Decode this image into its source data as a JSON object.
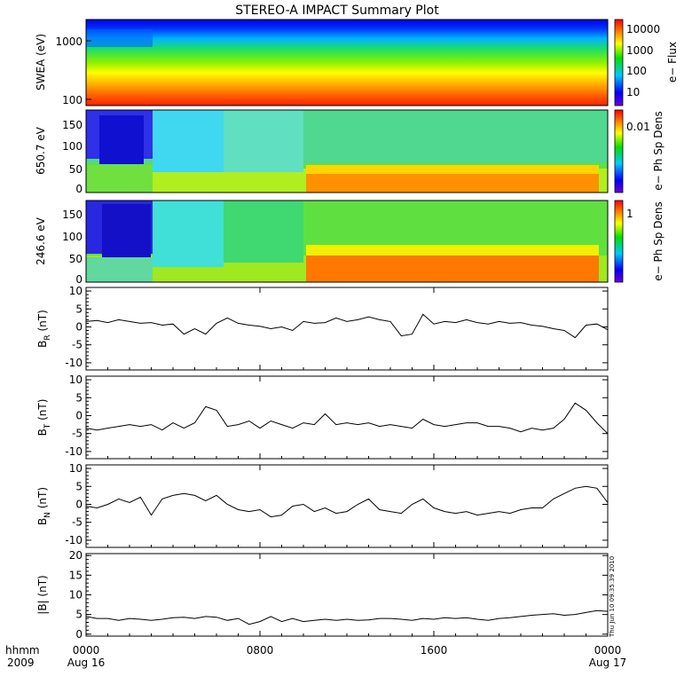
{
  "title": "STEREO-A IMPACT Summary Plot",
  "x_axis": {
    "ticks": [
      "0000",
      "0800",
      "1600",
      "0000"
    ],
    "dates": [
      "Aug 16",
      "",
      "",
      "Aug 17"
    ],
    "left_label_top": "hhmm",
    "left_label_bottom": "2009"
  },
  "timestamp": "Thu Jun 10 09:35:39 2010",
  "colors": {
    "line": "#000000",
    "background": "#ffffff",
    "spectrogram_scale": "rainbow (blue low → red high)"
  },
  "chart_data": [
    {
      "type": "heatmap",
      "ylabel": "SWEA (eV)",
      "yscale": "log",
      "ylim": [
        100,
        1800
      ],
      "yticks": [
        "1000",
        "100"
      ],
      "colorbar_label": "e− Flux",
      "colorbar_scale": "log",
      "colorbar_ticks": [
        "10000",
        "1000",
        "100",
        "10"
      ],
      "description_of_values": "flux highest (red) at ~100 eV, decreasing with energy; blue above ~1500 eV"
    },
    {
      "type": "heatmap",
      "ylabel": "650.7 eV",
      "ylim": [
        -10,
        175
      ],
      "yticks": [
        "150",
        "100",
        "50",
        "0"
      ],
      "colorbar_label": "e− Ph Sp Dens",
      "colorbar_ticks": [
        "0.01"
      ]
    },
    {
      "type": "heatmap",
      "ylabel": "246.6 eV",
      "ylim": [
        -10,
        175
      ],
      "yticks": [
        "150",
        "100",
        "50",
        "0"
      ],
      "colorbar_label": "e− Ph Sp Dens",
      "colorbar_ticks": [
        "1"
      ]
    },
    {
      "type": "line",
      "ylabel": "B_R (nT)",
      "ylabel_main": "B",
      "ylabel_sub": "R",
      "ylabel_unit": "(nT)",
      "ylim": [
        -12,
        11
      ],
      "yticks": [
        "10",
        "5",
        "0",
        "-5",
        "-10"
      ],
      "x_hours": [
        0,
        0.5,
        1,
        1.5,
        2,
        2.5,
        3,
        3.5,
        4,
        4.5,
        5,
        5.5,
        6,
        6.5,
        7,
        7.5,
        8,
        8.5,
        9,
        9.5,
        10,
        10.5,
        11,
        11.5,
        12,
        12.5,
        13,
        13.5,
        14,
        14.5,
        15,
        15.5,
        16,
        16.5,
        17,
        17.5,
        18,
        18.5,
        19,
        19.5,
        20,
        20.5,
        21,
        21.5,
        22,
        22.5,
        23,
        23.5,
        24
      ],
      "values": [
        1.5,
        1.8,
        1.2,
        2.0,
        1.5,
        1.0,
        1.2,
        0.5,
        0.8,
        -2,
        -0.5,
        -2,
        1.0,
        2.5,
        1.0,
        0.5,
        0.2,
        -0.5,
        0,
        -1,
        1.5,
        1.0,
        1.2,
        2.5,
        1.5,
        2.0,
        2.8,
        2.0,
        1.5,
        -2.5,
        -2,
        3.5,
        0.8,
        1.5,
        1.2,
        2,
        1.2,
        0.8,
        1.5,
        1.0,
        1.2,
        0.5,
        0.2,
        -0.5,
        -1,
        -3,
        0.5,
        0.8,
        -0.8
      ]
    },
    {
      "type": "line",
      "ylabel": "B_T (nT)",
      "ylabel_main": "B",
      "ylabel_sub": "T",
      "ylabel_unit": "(nT)",
      "ylim": [
        -12,
        11
      ],
      "yticks": [
        "10",
        "5",
        "0",
        "-5",
        "-10"
      ],
      "x_hours": [
        0,
        0.5,
        1,
        1.5,
        2,
        2.5,
        3,
        3.5,
        4,
        4.5,
        5,
        5.5,
        6,
        6.5,
        7,
        7.5,
        8,
        8.5,
        9,
        9.5,
        10,
        10.5,
        11,
        11.5,
        12,
        12.5,
        13,
        13.5,
        14,
        14.5,
        15,
        15.5,
        16,
        16.5,
        17,
        17.5,
        18,
        18.5,
        19,
        19.5,
        20,
        20.5,
        21,
        21.5,
        22,
        22.5,
        23,
        23.5,
        24
      ],
      "values": [
        -3.5,
        -4,
        -3.5,
        -3,
        -2.5,
        -3,
        -2.5,
        -4,
        -2,
        -3.5,
        -2,
        2.5,
        1.5,
        -3,
        -2.5,
        -1.5,
        -3.5,
        -1.5,
        -2.5,
        -3.5,
        -2,
        -2.5,
        0.5,
        -2.5,
        -2,
        -2.5,
        -2,
        -3,
        -2.5,
        -3,
        -3.5,
        -1,
        -2.5,
        -3,
        -2.5,
        -2,
        -2,
        -3,
        -3,
        -3.5,
        -4.5,
        -3.5,
        -4,
        -3.5,
        -1,
        3.5,
        1.5,
        -2,
        -5
      ]
    },
    {
      "type": "line",
      "ylabel": "B_N (nT)",
      "ylabel_main": "B",
      "ylabel_sub": "N",
      "ylabel_unit": "(nT)",
      "ylim": [
        -12,
        11
      ],
      "yticks": [
        "10",
        "5",
        "0",
        "-5",
        "-10"
      ],
      "x_hours": [
        0,
        0.5,
        1,
        1.5,
        2,
        2.5,
        3,
        3.5,
        4,
        4.5,
        5,
        5.5,
        6,
        6.5,
        7,
        7.5,
        8,
        8.5,
        9,
        9.5,
        10,
        10.5,
        11,
        11.5,
        12,
        12.5,
        13,
        13.5,
        14,
        14.5,
        15,
        15.5,
        16,
        16.5,
        17,
        17.5,
        18,
        18.5,
        19,
        19.5,
        20,
        20.5,
        21,
        21.5,
        22,
        22.5,
        23,
        23.5,
        24
      ],
      "values": [
        -0.5,
        -1,
        0,
        1.5,
        0.5,
        2,
        -3,
        1.5,
        2.5,
        3,
        2.5,
        1,
        2.5,
        0,
        -1.5,
        -2,
        -1.5,
        -3.5,
        -3,
        -0.5,
        0,
        -2,
        -1,
        -2.5,
        -2,
        0,
        1.5,
        -1.5,
        -2,
        -2.5,
        0,
        1.5,
        -1,
        -2,
        -2.5,
        -2,
        -3,
        -2.5,
        -2,
        -2.5,
        -1.5,
        -1,
        -1,
        1.5,
        3,
        4.5,
        5,
        4.5,
        0.5
      ]
    },
    {
      "type": "line",
      "ylabel": "|B| (nT)",
      "ylabel_main": "|B|",
      "ylabel_sub": "",
      "ylabel_unit": "(nT)",
      "ylim": [
        -0.5,
        20.5
      ],
      "yticks": [
        "20",
        "15",
        "10",
        "5",
        "0"
      ],
      "x_hours": [
        0,
        0.5,
        1,
        1.5,
        2,
        2.5,
        3,
        3.5,
        4,
        4.5,
        5,
        5.5,
        6,
        6.5,
        7,
        7.5,
        8,
        8.5,
        9,
        9.5,
        10,
        10.5,
        11,
        11.5,
        12,
        12.5,
        13,
        13.5,
        14,
        14.5,
        15,
        15.5,
        16,
        16.5,
        17,
        17.5,
        18,
        18.5,
        19,
        19.5,
        20,
        20.5,
        21,
        21.5,
        22,
        22.5,
        23,
        23.5,
        24
      ],
      "values": [
        4.5,
        4,
        4,
        3.5,
        4,
        3.8,
        3.5,
        3.8,
        4.2,
        4.3,
        4,
        4.5,
        4.3,
        3.5,
        4,
        2.5,
        3.2,
        4.5,
        3.2,
        4,
        3.2,
        3.5,
        3.8,
        3.5,
        3.8,
        3.5,
        3.6,
        4,
        4,
        3.8,
        3.5,
        4,
        3.8,
        4.2,
        4,
        4.2,
        3.8,
        3.5,
        4,
        4.2,
        4.5,
        4.8,
        5,
        5.2,
        4.8,
        5,
        5.5,
        6,
        5.8
      ]
    }
  ]
}
